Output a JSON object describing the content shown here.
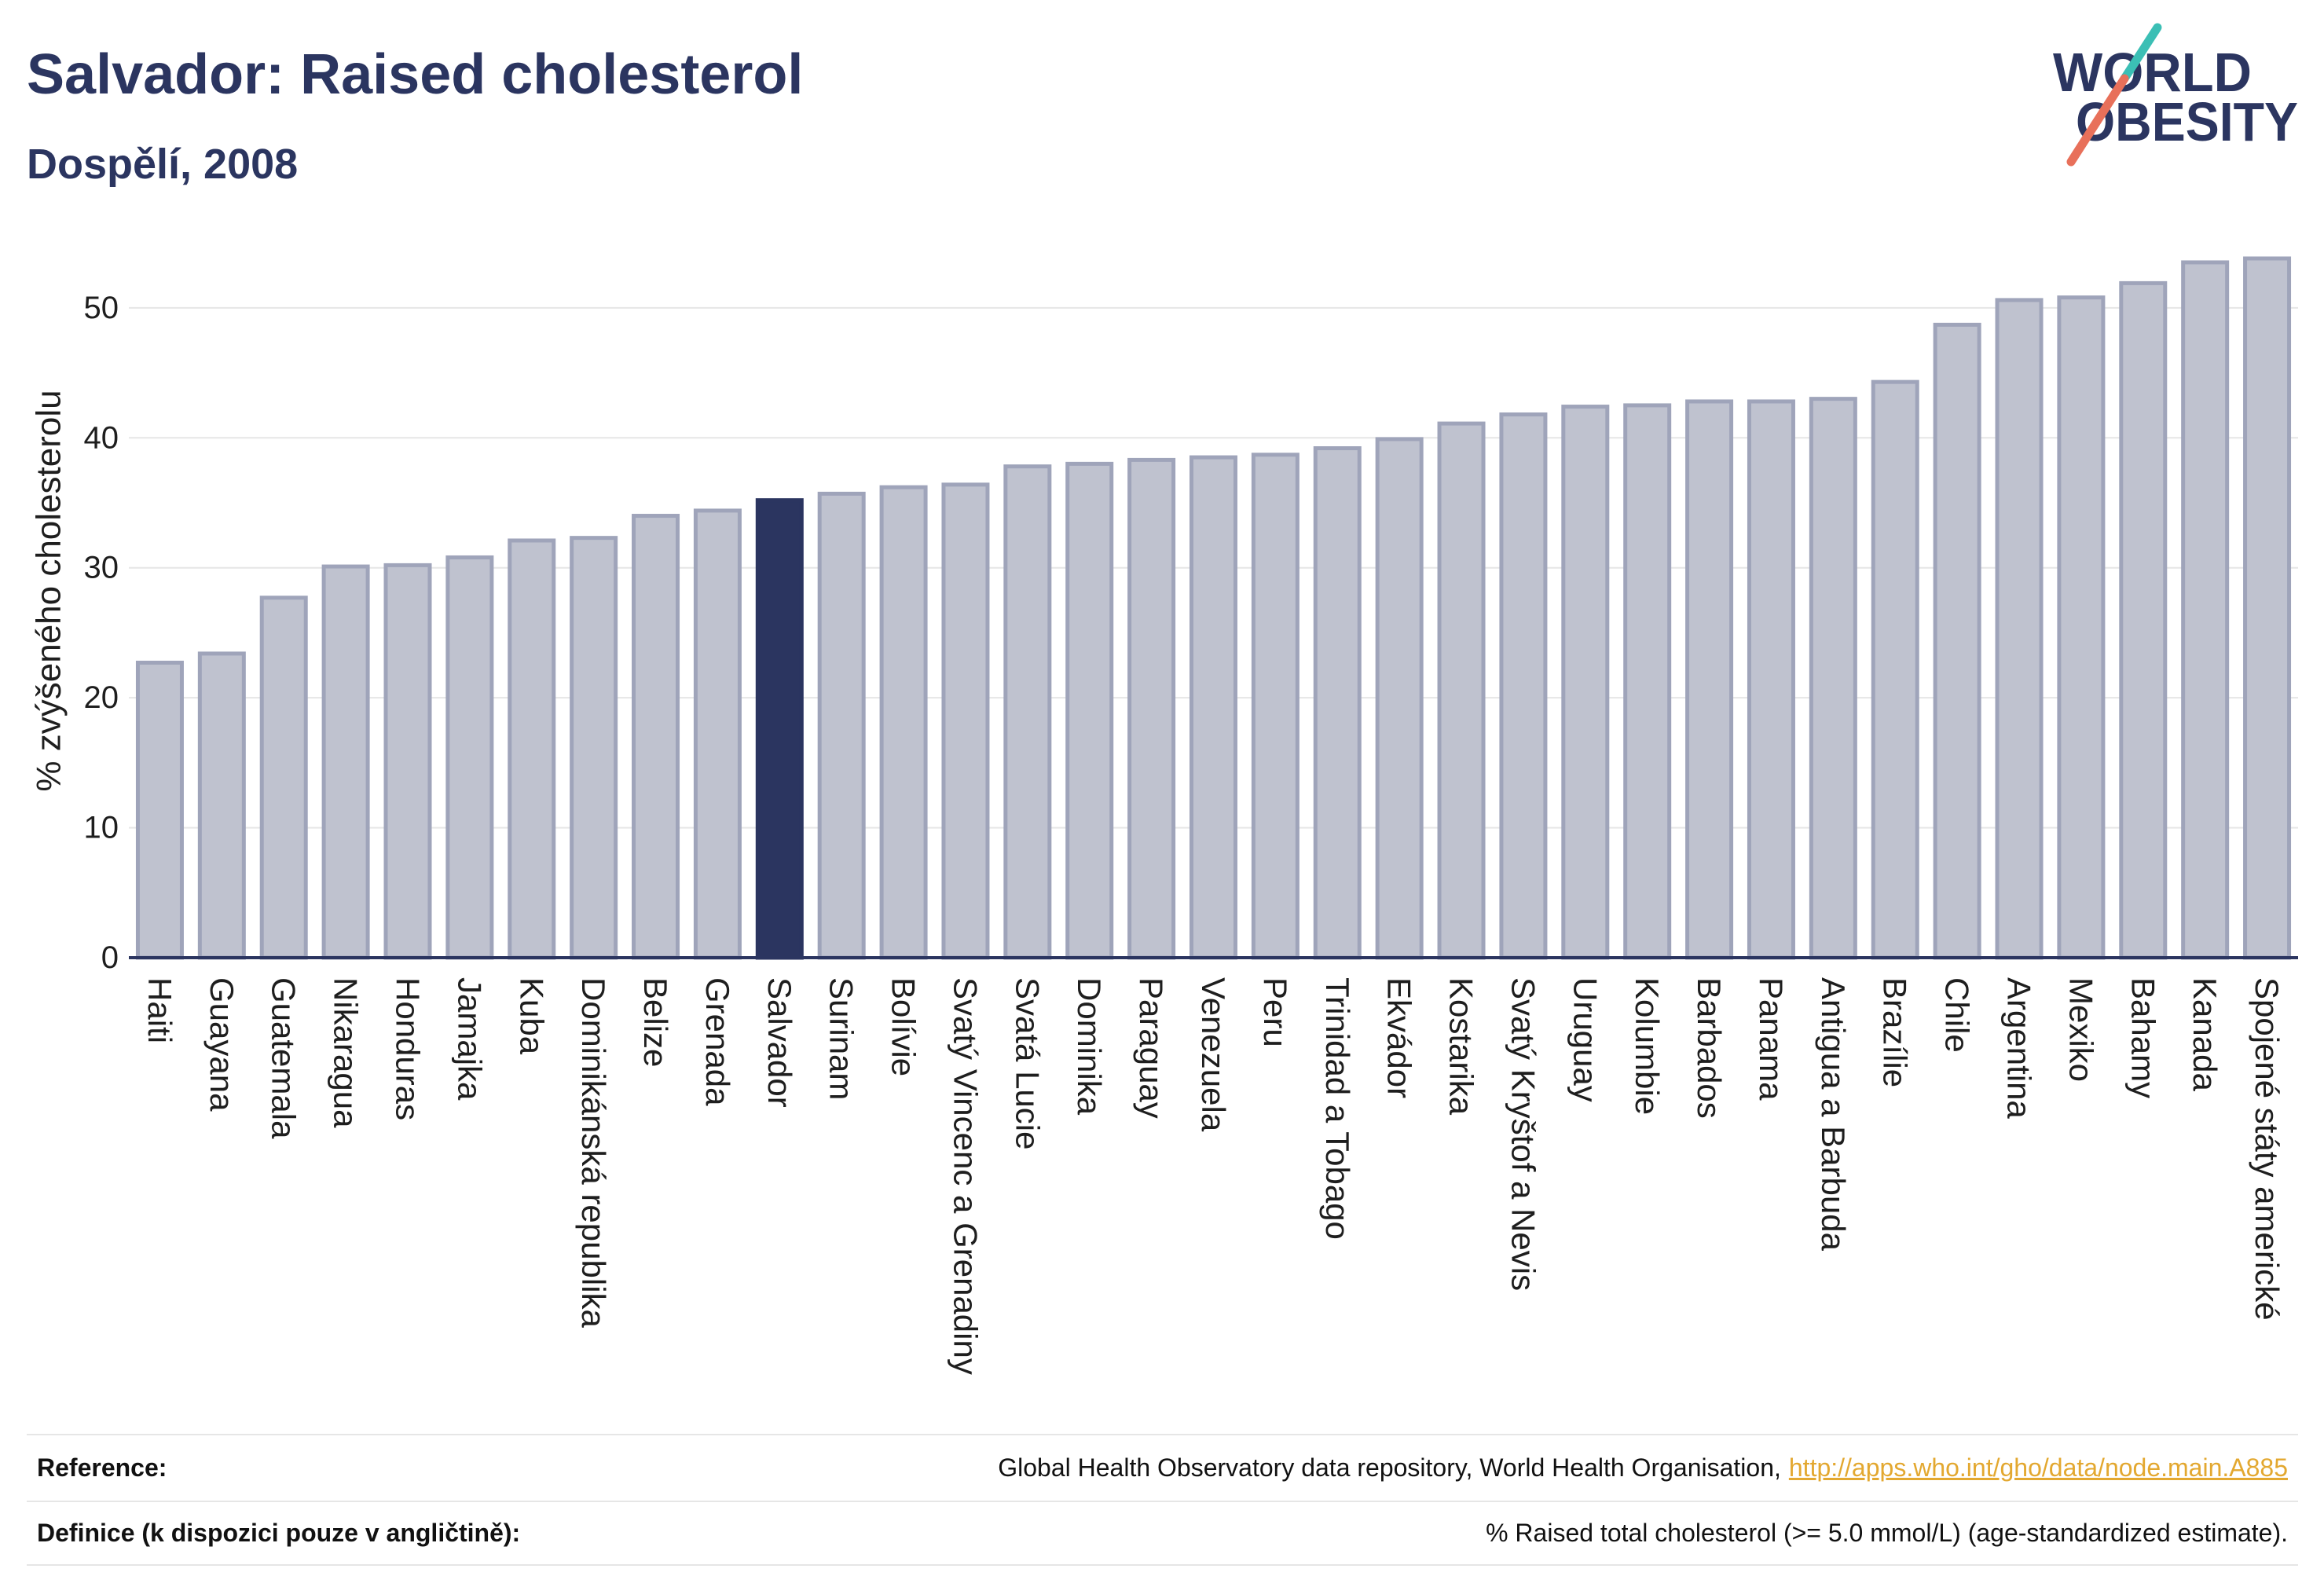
{
  "chart_data": {
    "type": "bar",
    "title": "Salvador: Raised cholesterol",
    "subtitle": "Dospělí, 2008",
    "ylabel": "% zvýšeného cholesterolu",
    "ylim": [
      0,
      56.7
    ],
    "yticks": [
      0,
      10,
      20,
      30,
      40,
      50
    ],
    "grid": true,
    "highlight_index": 10,
    "categories": [
      "Haiti",
      "Guayana",
      "Guatemala",
      "Nikaragua",
      "Honduras",
      "Jamajka",
      "Kuba",
      "Dominikánská republika",
      "Belize",
      "Grenada",
      "Salvador",
      "Surinam",
      "Bolívie",
      "Svatý Vincenc a Grenadiny",
      "Svatá Lucie",
      "Dominika",
      "Paraguay",
      "Venezuela",
      "Peru",
      "Trinidad a Tobago",
      "Ekvádor",
      "Kostarika",
      "Svatý Kryštof a Nevis",
      "Uruguay",
      "Kolumbie",
      "Barbados",
      "Panama",
      "Antigua a Barbuda",
      "Brazílie",
      "Chile",
      "Argentina",
      "Mexiko",
      "Bahamy",
      "Kanada",
      "Spojené státy americké"
    ],
    "values": [
      22.7,
      23.4,
      27.7,
      30.1,
      30.2,
      30.8,
      32.1,
      32.3,
      34.0,
      34.4,
      35.2,
      35.7,
      36.2,
      36.4,
      37.8,
      38.0,
      38.3,
      38.5,
      38.7,
      39.2,
      39.9,
      41.1,
      41.8,
      42.4,
      42.5,
      42.8,
      42.8,
      43.0,
      44.3,
      48.7,
      50.6,
      50.8,
      51.9,
      53.5,
      53.8
    ]
  },
  "logo": {
    "line1": "WORLD",
    "line2": "OBESITY"
  },
  "footer": {
    "reference_label": "Reference:",
    "reference_text": "Global Health Observatory data repository, World Health Organisation,",
    "reference_link": "http://apps.who.int/gho/data/node.main.A885",
    "definition_label": "Definice (k dispozici pouze v angličtině):",
    "definition_text": "% Raised total cholesterol (>= 5.0 mmol/L) (age-standardized estimate)."
  },
  "colors": {
    "primary": "#2b3560",
    "bar_fill": "#bfc2cf",
    "bar_border": "#9fa4ba",
    "highlight": "#2b3560",
    "grid": "#e6e6e6",
    "link": "#e3a830",
    "logo_teal": "#3bbfb5",
    "logo_coral": "#e8705a"
  }
}
